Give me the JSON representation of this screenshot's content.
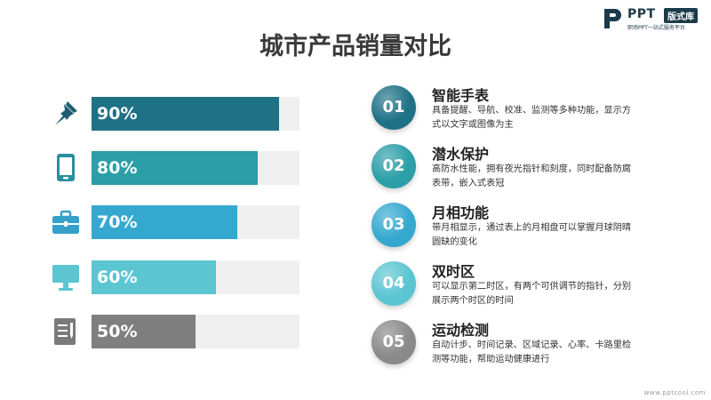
{
  "title": "城市产品销量对比",
  "logo": {
    "brand": "PPT",
    "badge": "版式库",
    "tagline": "职场PPT一站式服务平台"
  },
  "bars": [
    {
      "label": "90%",
      "value": 90,
      "color": "#1f7186",
      "icon": "pushpin-icon"
    },
    {
      "label": "80%",
      "value": 80,
      "color": "#2b9ea7",
      "icon": "tablet-icon"
    },
    {
      "label": "70%",
      "value": 70,
      "color": "#35a8cf",
      "icon": "briefcase-icon"
    },
    {
      "label": "60%",
      "value": 60,
      "color": "#5bc5d2",
      "icon": "monitor-icon"
    },
    {
      "label": "50%",
      "value": 50,
      "color": "#7f7f7f",
      "icon": "document-icon"
    }
  ],
  "features": [
    {
      "num": "01",
      "title": "智能手表",
      "desc": "具备提醒、导航、校准、监测等多种功能，显示方式以文字或图像为主",
      "color": "#1f7186"
    },
    {
      "num": "02",
      "title": "潜水保护",
      "desc": "高防水性能，拥有夜光指针和刻度，同时配备防腐表带，嵌入式表冠",
      "color": "#2b9ea7"
    },
    {
      "num": "03",
      "title": "月相功能",
      "desc": "带月相显示，通过表上的月相盘可以掌握月球阴晴圆缺的变化",
      "color": "#35a8cf"
    },
    {
      "num": "04",
      "title": "双时区",
      "desc": "可以显示第二时区，有两个可供调节的指针，分别展示两个时区的时间",
      "color": "#5bc5d2"
    },
    {
      "num": "05",
      "title": "运动检测",
      "desc": "自动计步、时间记录、区域记录、心率、卡路里检测等功能，帮助运动健康进行",
      "color": "#8a8a8a"
    }
  ],
  "footer": "www.pptcool.com"
}
